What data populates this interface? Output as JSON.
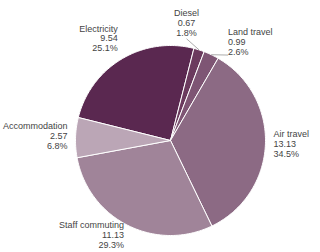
{
  "chart_data": {
    "type": "pie",
    "categories": [
      "Electricity",
      "Diesel",
      "Land travel",
      "Air travel",
      "Staff commuting",
      "Accommodation"
    ],
    "values": [
      25.1,
      1.8,
      2.6,
      34.5,
      29.3,
      6.8
    ],
    "value_labels": [
      "25.1%",
      "1.8%",
      "2.6%",
      "34.5%",
      "29.3%",
      "6.8%"
    ],
    "amounts": [
      9.54,
      0.67,
      0.99,
      13.13,
      11.13,
      2.57
    ],
    "colors": [
      "#5a2850",
      "#6b3a5e",
      "#7e5574",
      "#8c6a84",
      "#a08499",
      "#bba6b6"
    ],
    "data_labels": true
  }
}
